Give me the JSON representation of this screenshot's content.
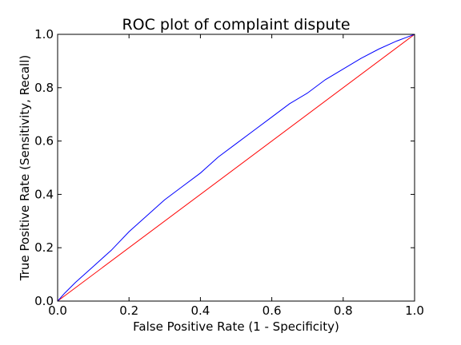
{
  "chart_data": {
    "type": "line",
    "title": "ROC plot of  complaint dispute",
    "xlabel": "False Positive Rate (1 - Specificity)",
    "ylabel": "True Positive Rate (Sensitivity, Recall)",
    "xlim": [
      0.0,
      1.0
    ],
    "ylim": [
      0.0,
      1.0
    ],
    "xticks": [
      "0.0",
      "0.2",
      "0.4",
      "0.6",
      "0.8",
      "1.0"
    ],
    "yticks": [
      "0.0",
      "0.2",
      "0.4",
      "0.6",
      "0.8",
      "1.0"
    ],
    "grid": false,
    "legend": "none",
    "series": [
      {
        "color": "#0000ff",
        "x": [
          0.0,
          0.02,
          0.05,
          0.1,
          0.15,
          0.2,
          0.25,
          0.3,
          0.35,
          0.4,
          0.45,
          0.5,
          0.55,
          0.6,
          0.65,
          0.7,
          0.75,
          0.8,
          0.85,
          0.9,
          0.95,
          1.0
        ],
        "y": [
          0.0,
          0.03,
          0.07,
          0.13,
          0.19,
          0.26,
          0.32,
          0.38,
          0.43,
          0.48,
          0.54,
          0.59,
          0.64,
          0.69,
          0.74,
          0.78,
          0.83,
          0.87,
          0.91,
          0.945,
          0.975,
          1.0
        ]
      },
      {
        "color": "#ff0000",
        "x": [
          0.0,
          1.0
        ],
        "y": [
          0.0,
          1.0
        ]
      }
    ]
  }
}
